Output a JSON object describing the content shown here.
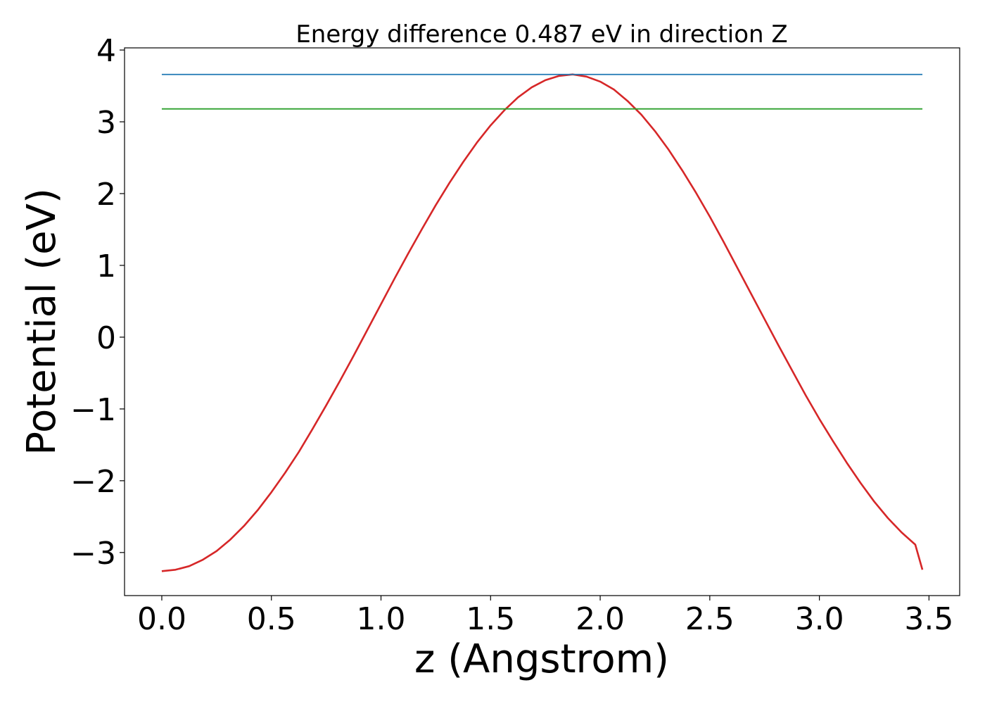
{
  "chart_data": {
    "type": "line",
    "title": "Energy difference 0.487 eV in direction Z",
    "xlabel": "z (Angstrom)",
    "ylabel": "Potential (eV)",
    "xlim": [
      -0.17,
      3.64
    ],
    "ylim": [
      -3.6,
      4.03
    ],
    "xticks": [
      0.0,
      0.5,
      1.0,
      1.5,
      2.0,
      2.5,
      3.0,
      3.5
    ],
    "xtick_labels": [
      "0.0",
      "0.5",
      "1.0",
      "1.5",
      "2.0",
      "2.5",
      "3.0",
      "3.5"
    ],
    "yticks": [
      -3,
      -2,
      -1,
      0,
      1,
      2,
      3,
      4
    ],
    "ytick_labels": [
      "−3",
      "−2",
      "−1",
      "0",
      "1",
      "2",
      "3",
      "4"
    ],
    "grid": false,
    "series": [
      {
        "color": "#d62728",
        "x": [
          0.0,
          0.0625,
          0.125,
          0.1875,
          0.25,
          0.3125,
          0.375,
          0.4375,
          0.5,
          0.5625,
          0.625,
          0.6875,
          0.75,
          0.8125,
          0.875,
          0.9375,
          1.0,
          1.0625,
          1.125,
          1.1875,
          1.25,
          1.3125,
          1.375,
          1.4375,
          1.5,
          1.5625,
          1.625,
          1.6875,
          1.75,
          1.8125,
          1.875,
          1.9375,
          2.0,
          2.0625,
          2.125,
          2.1875,
          2.25,
          2.3125,
          2.375,
          2.4375,
          2.5,
          2.5625,
          2.625,
          2.6875,
          2.75,
          2.8125,
          2.875,
          2.9375,
          3.0,
          3.0625,
          3.125,
          3.1875,
          3.25,
          3.3125,
          3.375,
          3.4375,
          3.47
        ],
        "y": [
          -3.26,
          -3.24,
          -3.19,
          -3.1,
          -2.98,
          -2.82,
          -2.63,
          -2.41,
          -2.16,
          -1.89,
          -1.6,
          -1.28,
          -0.95,
          -0.61,
          -0.26,
          0.1,
          0.46,
          0.82,
          1.17,
          1.51,
          1.84,
          2.15,
          2.44,
          2.71,
          2.95,
          3.16,
          3.34,
          3.48,
          3.58,
          3.64,
          3.66,
          3.63,
          3.56,
          3.45,
          3.29,
          3.1,
          2.87,
          2.61,
          2.32,
          2.01,
          1.68,
          1.33,
          0.97,
          0.61,
          0.25,
          -0.11,
          -0.46,
          -0.81,
          -1.14,
          -1.45,
          -1.75,
          -2.03,
          -2.29,
          -2.52,
          -2.72,
          -2.89,
          -3.24
        ]
      },
      {
        "color": "#1f77b4",
        "x": [
          0.0,
          3.47
        ],
        "y": [
          3.66,
          3.66
        ]
      },
      {
        "color": "#2ca02c",
        "x": [
          0.0,
          3.47
        ],
        "y": [
          3.18,
          3.18
        ]
      }
    ]
  }
}
